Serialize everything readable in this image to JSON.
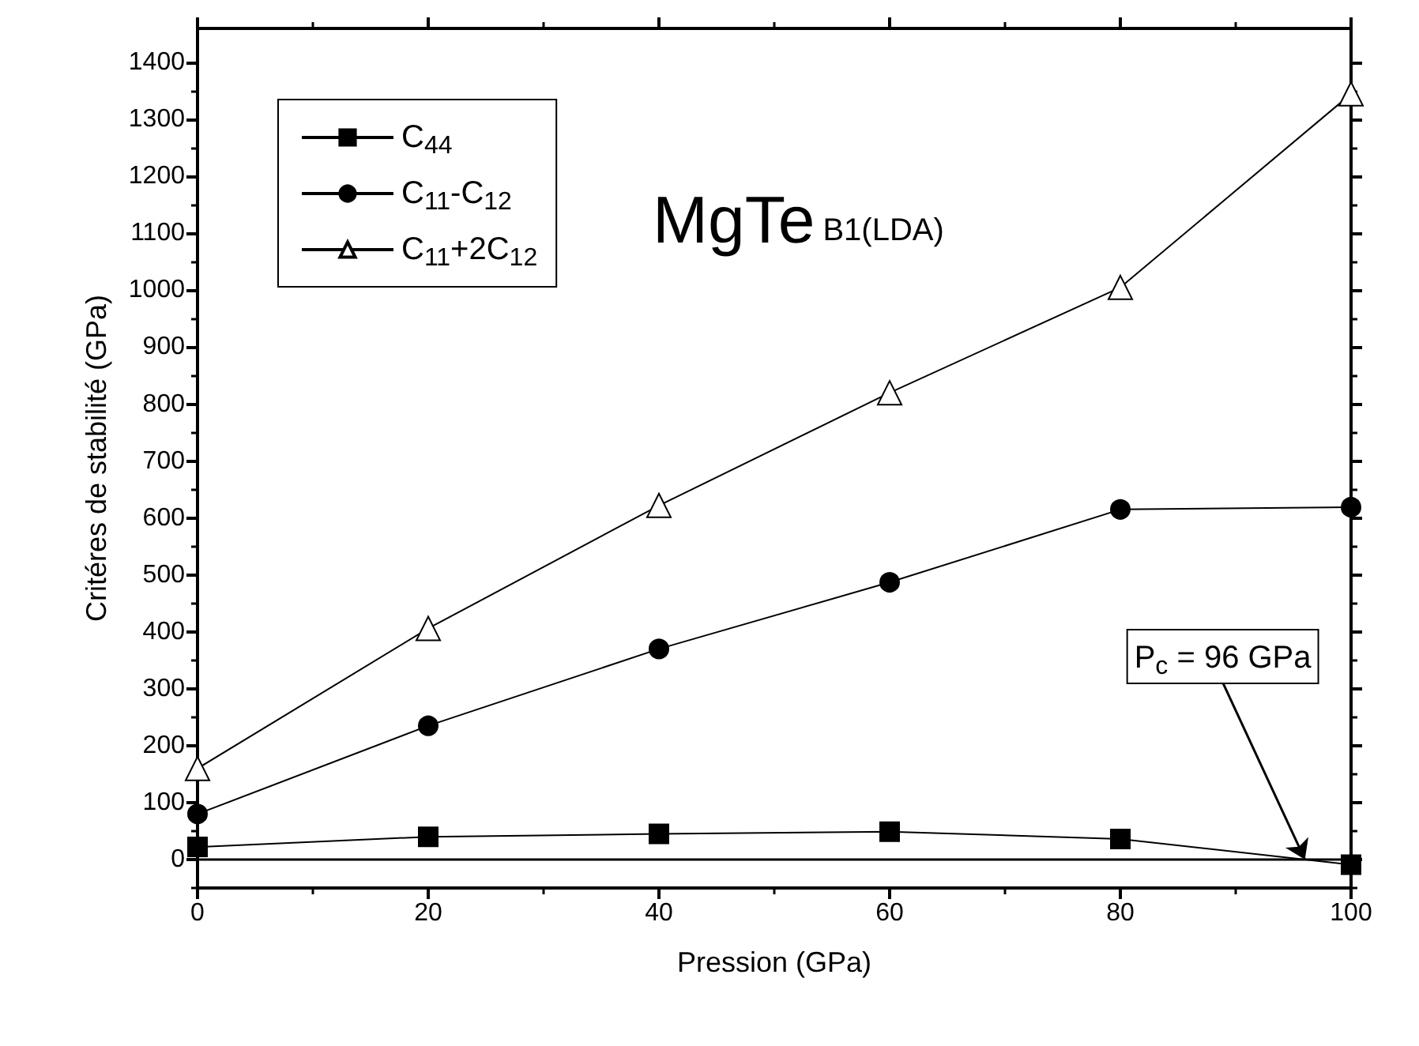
{
  "chart_data": {
    "type": "line",
    "title": "MgTe",
    "subtitle": "B1(LDA)",
    "xlabel": "Pression (GPa)",
    "ylabel": "Critéres de stabilité (GPa)",
    "x": [
      0,
      20,
      40,
      60,
      80,
      100
    ],
    "series": [
      {
        "name": "C$_{44}$",
        "color": "#000000",
        "marker": "square",
        "values": [
          22,
          40,
          45,
          49,
          36,
          -9
        ]
      },
      {
        "name": "C$_{11}$-C$_{12}$",
        "color": "#000000",
        "marker": "circle",
        "values": [
          80,
          235,
          370,
          487,
          615,
          619
        ]
      },
      {
        "name": "C$_{11}$+2C$_{12}$",
        "color": "#000000",
        "marker": "triangle",
        "values": [
          160,
          406,
          622,
          820,
          1005,
          1345
        ]
      }
    ],
    "xlim": [
      0,
      100
    ],
    "xticks": [
      0,
      20,
      40,
      60,
      80,
      100
    ],
    "ylim": [
      -50,
      1460
    ],
    "yticks": [
      0,
      100,
      200,
      300,
      400,
      500,
      600,
      700,
      800,
      900,
      1000,
      1100,
      1200,
      1300,
      1400
    ],
    "ref_lines": [
      {
        "axis": "y",
        "value": 0,
        "color": "#000000"
      }
    ],
    "annotations": [
      {
        "text": "P$_{c}$ = 96 GPa",
        "x": 96,
        "y": 0
      }
    ],
    "grid": false,
    "legend": "top left",
    "line_style": "solid"
  }
}
